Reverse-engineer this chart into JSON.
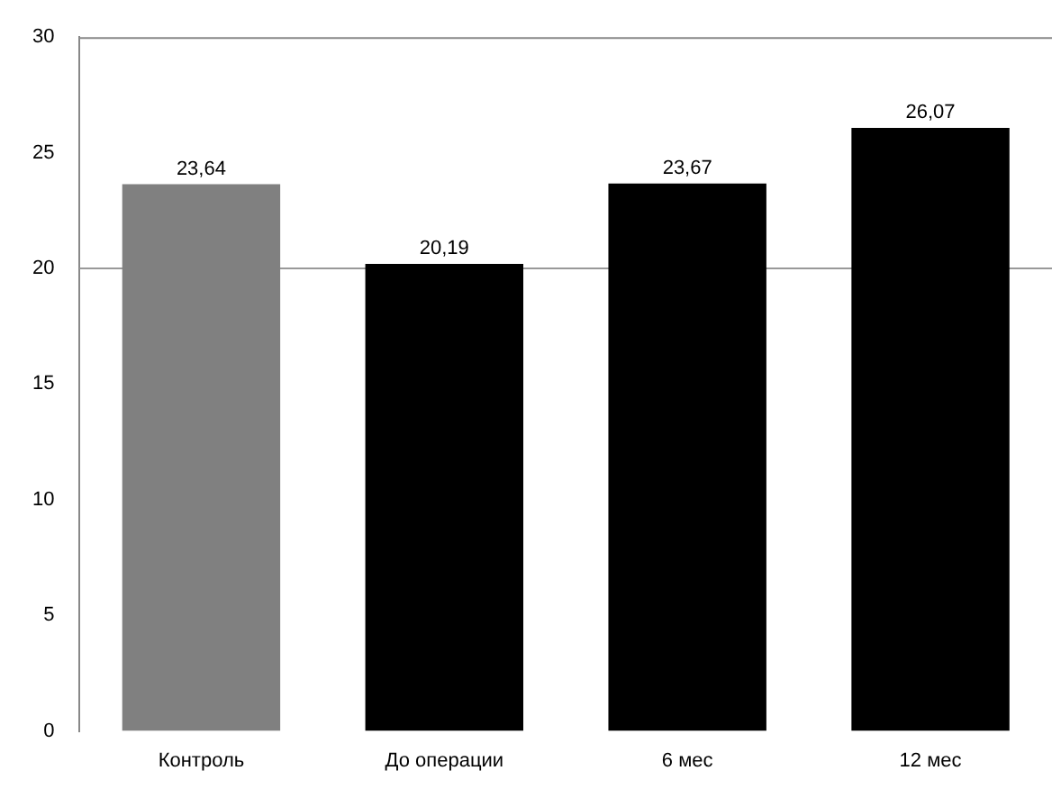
{
  "chart_data": {
    "type": "bar",
    "categories": [
      "Контроль",
      "До операции",
      "6 мес",
      "12 мес"
    ],
    "values": [
      23.64,
      20.19,
      23.67,
      26.07
    ],
    "colors": [
      "#808080",
      "#000000",
      "#000000",
      "#000000"
    ],
    "value_labels": [
      "23,64",
      "20,19",
      "23,67",
      "26,07"
    ],
    "ylim": [
      0,
      30
    ],
    "yticks": [
      0,
      5,
      10,
      15,
      20,
      25,
      30
    ],
    "grid": false,
    "legend": false,
    "ref_lines": [
      {
        "axis": "y",
        "value": 20,
        "color": "#999999"
      }
    ]
  }
}
